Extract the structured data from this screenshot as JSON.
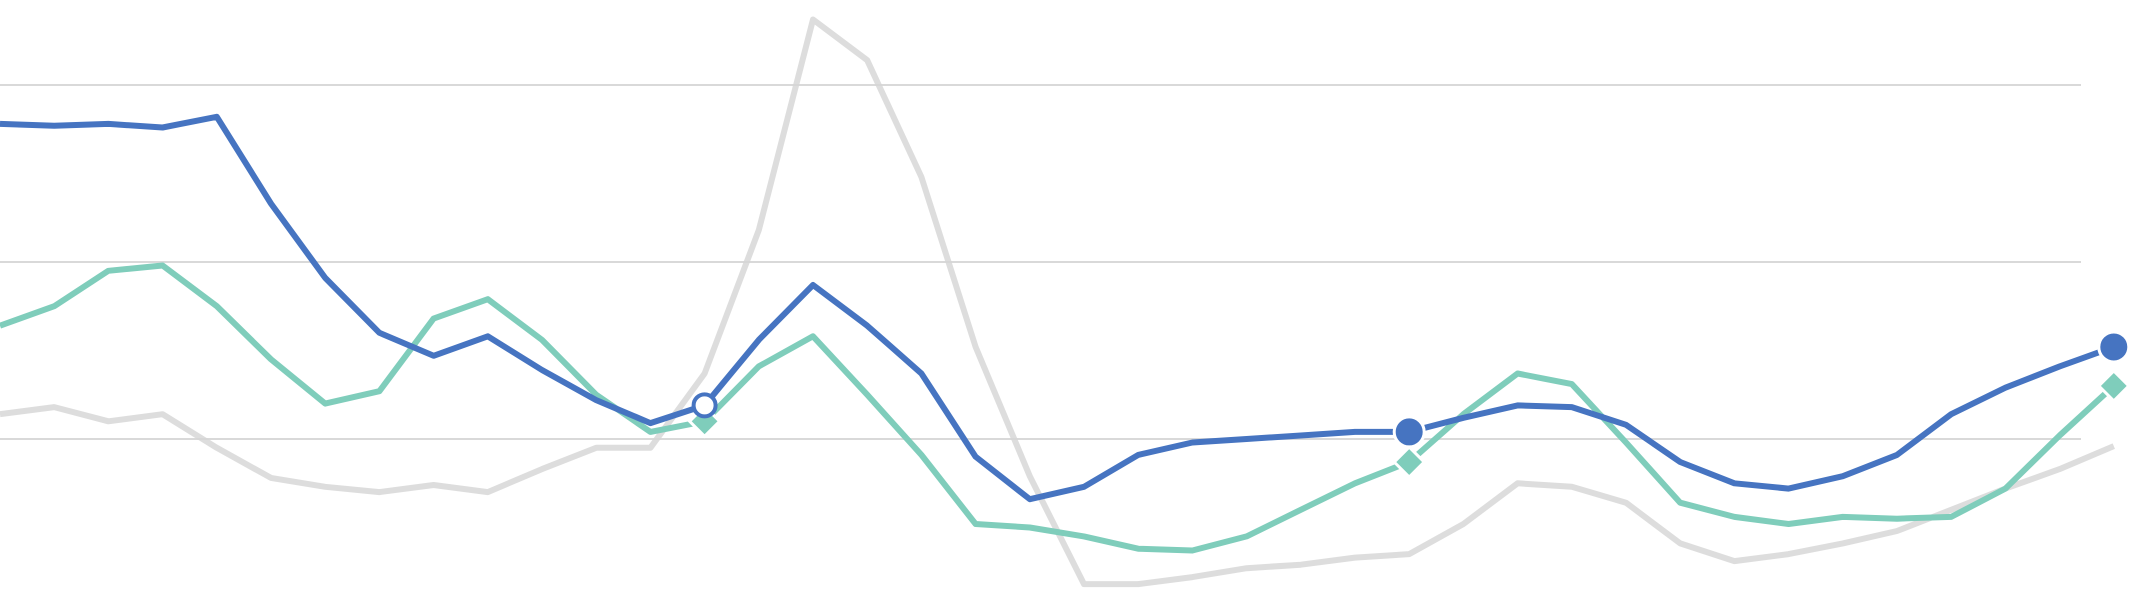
{
  "chart_data": {
    "type": "line",
    "categories": [
      null,
      null,
      null,
      null,
      null,
      null,
      null,
      null,
      null,
      null,
      null,
      null,
      null,
      null,
      null,
      null,
      null,
      null,
      null,
      null,
      null,
      null,
      null,
      null,
      null,
      null,
      null,
      null,
      null,
      null,
      null,
      null,
      null,
      null,
      null,
      null,
      null,
      null,
      null,
      null
    ],
    "ylim": [
      0.13,
      3.48
    ],
    "yticks": [
      1,
      2,
      3
    ],
    "grid": true,
    "series": [
      {
        "name": null,
        "color": "#d4d4d4",
        "marker": "none",
        "marker_points": [],
        "values": [
          1.14,
          1.18,
          1.1,
          1.14,
          0.95,
          0.78,
          0.73,
          0.7,
          0.74,
          0.7,
          0.83,
          0.95,
          0.95,
          1.37,
          2.18,
          3.37,
          3.14,
          2.48,
          1.52,
          0.79,
          0.18,
          0.18,
          0.22,
          0.27,
          0.29,
          0.33,
          0.35,
          0.52,
          0.75,
          0.73,
          0.64,
          0.41,
          0.31,
          0.35,
          0.41,
          0.48,
          0.6,
          0.72,
          0.83,
          0.96
        ]
      },
      {
        "name": null,
        "color": "#7fcdbb",
        "marker": "diamond",
        "marker_points": [
          13,
          26,
          39
        ],
        "values": [
          1.64,
          1.75,
          1.95,
          1.98,
          1.75,
          1.45,
          1.2,
          1.27,
          1.68,
          1.79,
          1.56,
          1.25,
          1.04,
          1.1,
          1.41,
          1.58,
          1.25,
          0.91,
          0.52,
          0.5,
          0.45,
          0.38,
          0.37,
          0.45,
          0.6,
          0.75,
          0.87,
          1.14,
          1.37,
          1.31,
          0.98,
          0.64,
          0.56,
          0.52,
          0.56,
          0.55,
          0.56,
          0.72,
          1.02,
          1.3
        ]
      },
      {
        "name": null,
        "color": "#4674c1",
        "marker": "circle",
        "marker_points": [
          13,
          26,
          39
        ],
        "values": [
          2.78,
          2.77,
          2.78,
          2.76,
          2.82,
          2.33,
          1.91,
          1.6,
          1.47,
          1.58,
          1.39,
          1.22,
          1.09,
          1.19,
          1.56,
          1.87,
          1.64,
          1.37,
          0.9,
          0.66,
          0.73,
          0.91,
          0.98,
          1.0,
          1.02,
          1.04,
          1.04,
          1.12,
          1.19,
          1.18,
          1.08,
          0.87,
          0.75,
          0.72,
          0.79,
          0.91,
          1.14,
          1.29,
          1.41,
          1.52
        ]
      }
    ]
  }
}
